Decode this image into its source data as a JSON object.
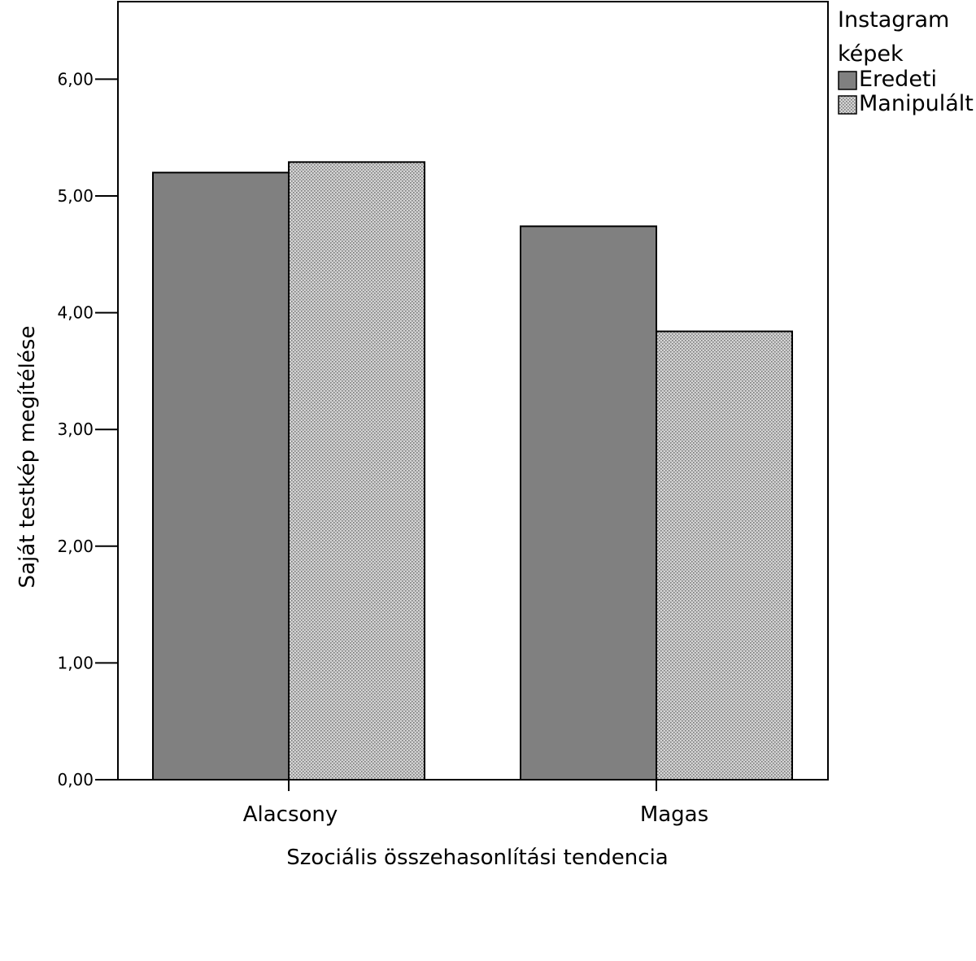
{
  "chart_data": {
    "type": "bar",
    "categories": [
      "Alacsony",
      "Magas"
    ],
    "series": [
      {
        "name": "Eredeti",
        "values": [
          5.2,
          4.74
        ],
        "color": "#808080",
        "pattern": "solid"
      },
      {
        "name": "Manipulált",
        "values": [
          5.29,
          3.84
        ],
        "color": "#c8c8c8",
        "pattern": "dotted"
      }
    ],
    "xlabel": "Szociális összehasonlítási tendencia",
    "ylabel": "Saját testkép megítélése",
    "ylim": [
      0,
      6.6
    ],
    "yticks": [
      0,
      1,
      2,
      3,
      4,
      5,
      6
    ],
    "ytick_labels": [
      "0,00",
      "1,00",
      "2,00",
      "3,00",
      "4,00",
      "5,00",
      "6,00"
    ],
    "legend": {
      "title_line1": "Instagram",
      "title_line2": "képek",
      "placement": "top-right-outside"
    },
    "grid": false
  }
}
